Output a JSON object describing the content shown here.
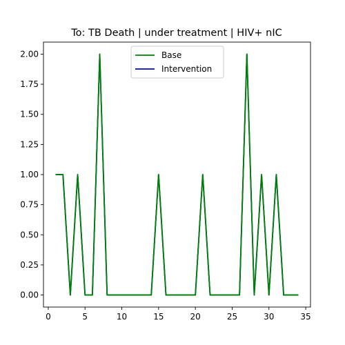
{
  "chart_data": {
    "type": "line",
    "title": "To: TB Death | under treatment | HIV+ nIC",
    "xlabel": "",
    "ylabel": "",
    "xlim": [
      -0.65,
      35.65
    ],
    "ylim": [
      -0.1,
      2.1
    ],
    "xticks": [
      0,
      5,
      10,
      15,
      20,
      25,
      30,
      35
    ],
    "yticks": [
      0.0,
      0.25,
      0.5,
      0.75,
      1.0,
      1.25,
      1.5,
      1.75,
      2.0
    ],
    "ytick_labels": [
      "0.00",
      "0.25",
      "0.50",
      "0.75",
      "1.00",
      "1.25",
      "1.50",
      "1.75",
      "2.00"
    ],
    "grid": false,
    "legend_position": "top-center",
    "x": [
      1,
      2,
      3,
      4,
      5,
      6,
      7,
      8,
      9,
      10,
      11,
      12,
      13,
      14,
      15,
      16,
      17,
      18,
      19,
      20,
      21,
      22,
      23,
      24,
      25,
      26,
      27,
      28,
      29,
      30,
      31,
      32,
      33,
      34
    ],
    "series": [
      {
        "name": "Intervention",
        "color": "#0000bf",
        "values": [
          1,
          1,
          0,
          1,
          0,
          0,
          2,
          0,
          0,
          0,
          0,
          0,
          0,
          0,
          1,
          0,
          0,
          0,
          0,
          0,
          1,
          0,
          0,
          0,
          0,
          0,
          2,
          0,
          1,
          0,
          1,
          0,
          0,
          0
        ]
      },
      {
        "name": "Base",
        "color": "#008000",
        "values": [
          1,
          1,
          0,
          1,
          0,
          0,
          2,
          0,
          0,
          0,
          0,
          0,
          0,
          0,
          1,
          0,
          0,
          0,
          0,
          0,
          1,
          0,
          0,
          0,
          0,
          0,
          2,
          0,
          1,
          0,
          1,
          0,
          0,
          0
        ]
      }
    ],
    "legend_order": [
      "Base",
      "Intervention"
    ]
  }
}
